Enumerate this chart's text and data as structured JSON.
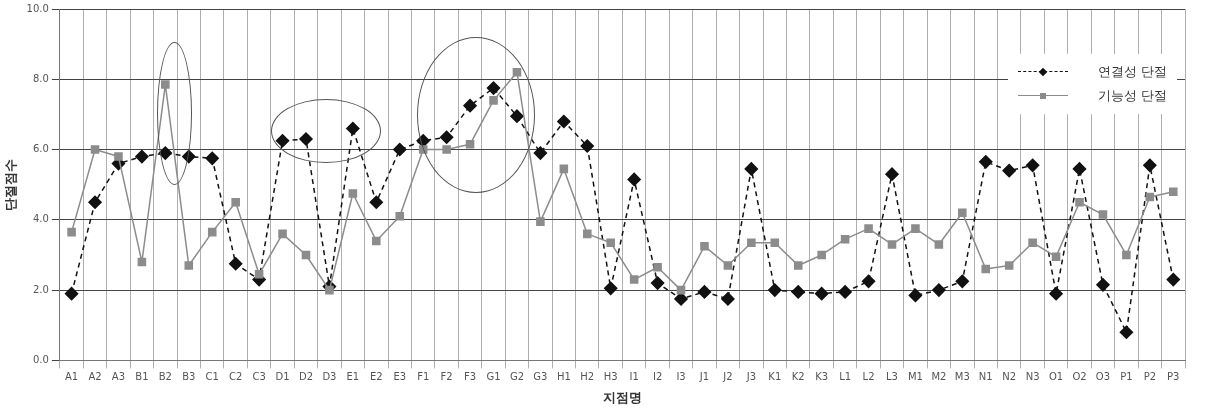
{
  "chart_data": {
    "type": "line",
    "xlabel": "지점명",
    "ylabel": "단절점수",
    "categories": [
      "A1",
      "A2",
      "A3",
      "B1",
      "B2",
      "B3",
      "C1",
      "C2",
      "C3",
      "D1",
      "D2",
      "D3",
      "E1",
      "E2",
      "E3",
      "F1",
      "F2",
      "F3",
      "G1",
      "G2",
      "G3",
      "H1",
      "H2",
      "H3",
      "I1",
      "I2",
      "I3",
      "J1",
      "J2",
      "J3",
      "K1",
      "K2",
      "K3",
      "L1",
      "L2",
      "L3",
      "M1",
      "M2",
      "M3",
      "N1",
      "N2",
      "N3",
      "O1",
      "O2",
      "O3",
      "P1",
      "P2",
      "P3"
    ],
    "series": [
      {
        "name": "연결성 단절",
        "color": "#111111",
        "marker": "diamond",
        "line_style": "dashed",
        "values": [
          1.9,
          4.5,
          5.6,
          5.8,
          5.9,
          5.8,
          5.75,
          2.75,
          2.3,
          6.25,
          6.3,
          2.1,
          6.6,
          4.5,
          6.0,
          6.25,
          6.35,
          7.25,
          7.75,
          6.95,
          5.9,
          6.8,
          6.1,
          2.05,
          5.15,
          2.2,
          1.75,
          1.95,
          1.75,
          5.45,
          2.0,
          1.95,
          1.9,
          1.95,
          2.25,
          5.3,
          1.85,
          2.0,
          2.25,
          5.65,
          5.4,
          5.55,
          1.9,
          5.45,
          2.15,
          0.8,
          5.55,
          2.3
        ]
      },
      {
        "name": "기능성 단절",
        "color": "#8c8c8c",
        "marker": "square",
        "line_style": "solid",
        "values": [
          3.65,
          6.0,
          5.8,
          2.8,
          7.85,
          2.7,
          3.65,
          4.5,
          2.45,
          3.6,
          3.0,
          2.0,
          4.75,
          3.4,
          4.1,
          6.0,
          6.0,
          6.15,
          7.4,
          8.2,
          3.95,
          5.45,
          3.6,
          3.35,
          2.3,
          2.65,
          2.0,
          3.25,
          2.7,
          3.35,
          3.35,
          2.7,
          3.0,
          3.45,
          3.75,
          3.3,
          3.75,
          3.3,
          4.2,
          2.6,
          2.7,
          3.35,
          2.95,
          4.5,
          4.15,
          3.0,
          4.65,
          4.8
        ]
      }
    ],
    "ylim": [
      0,
      10
    ],
    "yticks": [
      {
        "value": 0,
        "label": "0.0"
      },
      {
        "value": 2,
        "label": "2.0"
      },
      {
        "value": 4,
        "label": "4.0"
      },
      {
        "value": 6,
        "label": "6.0"
      },
      {
        "value": 8,
        "label": "8.0"
      },
      {
        "value": 10,
        "label": "10.0"
      }
    ],
    "grid": true,
    "legend": "top right"
  }
}
